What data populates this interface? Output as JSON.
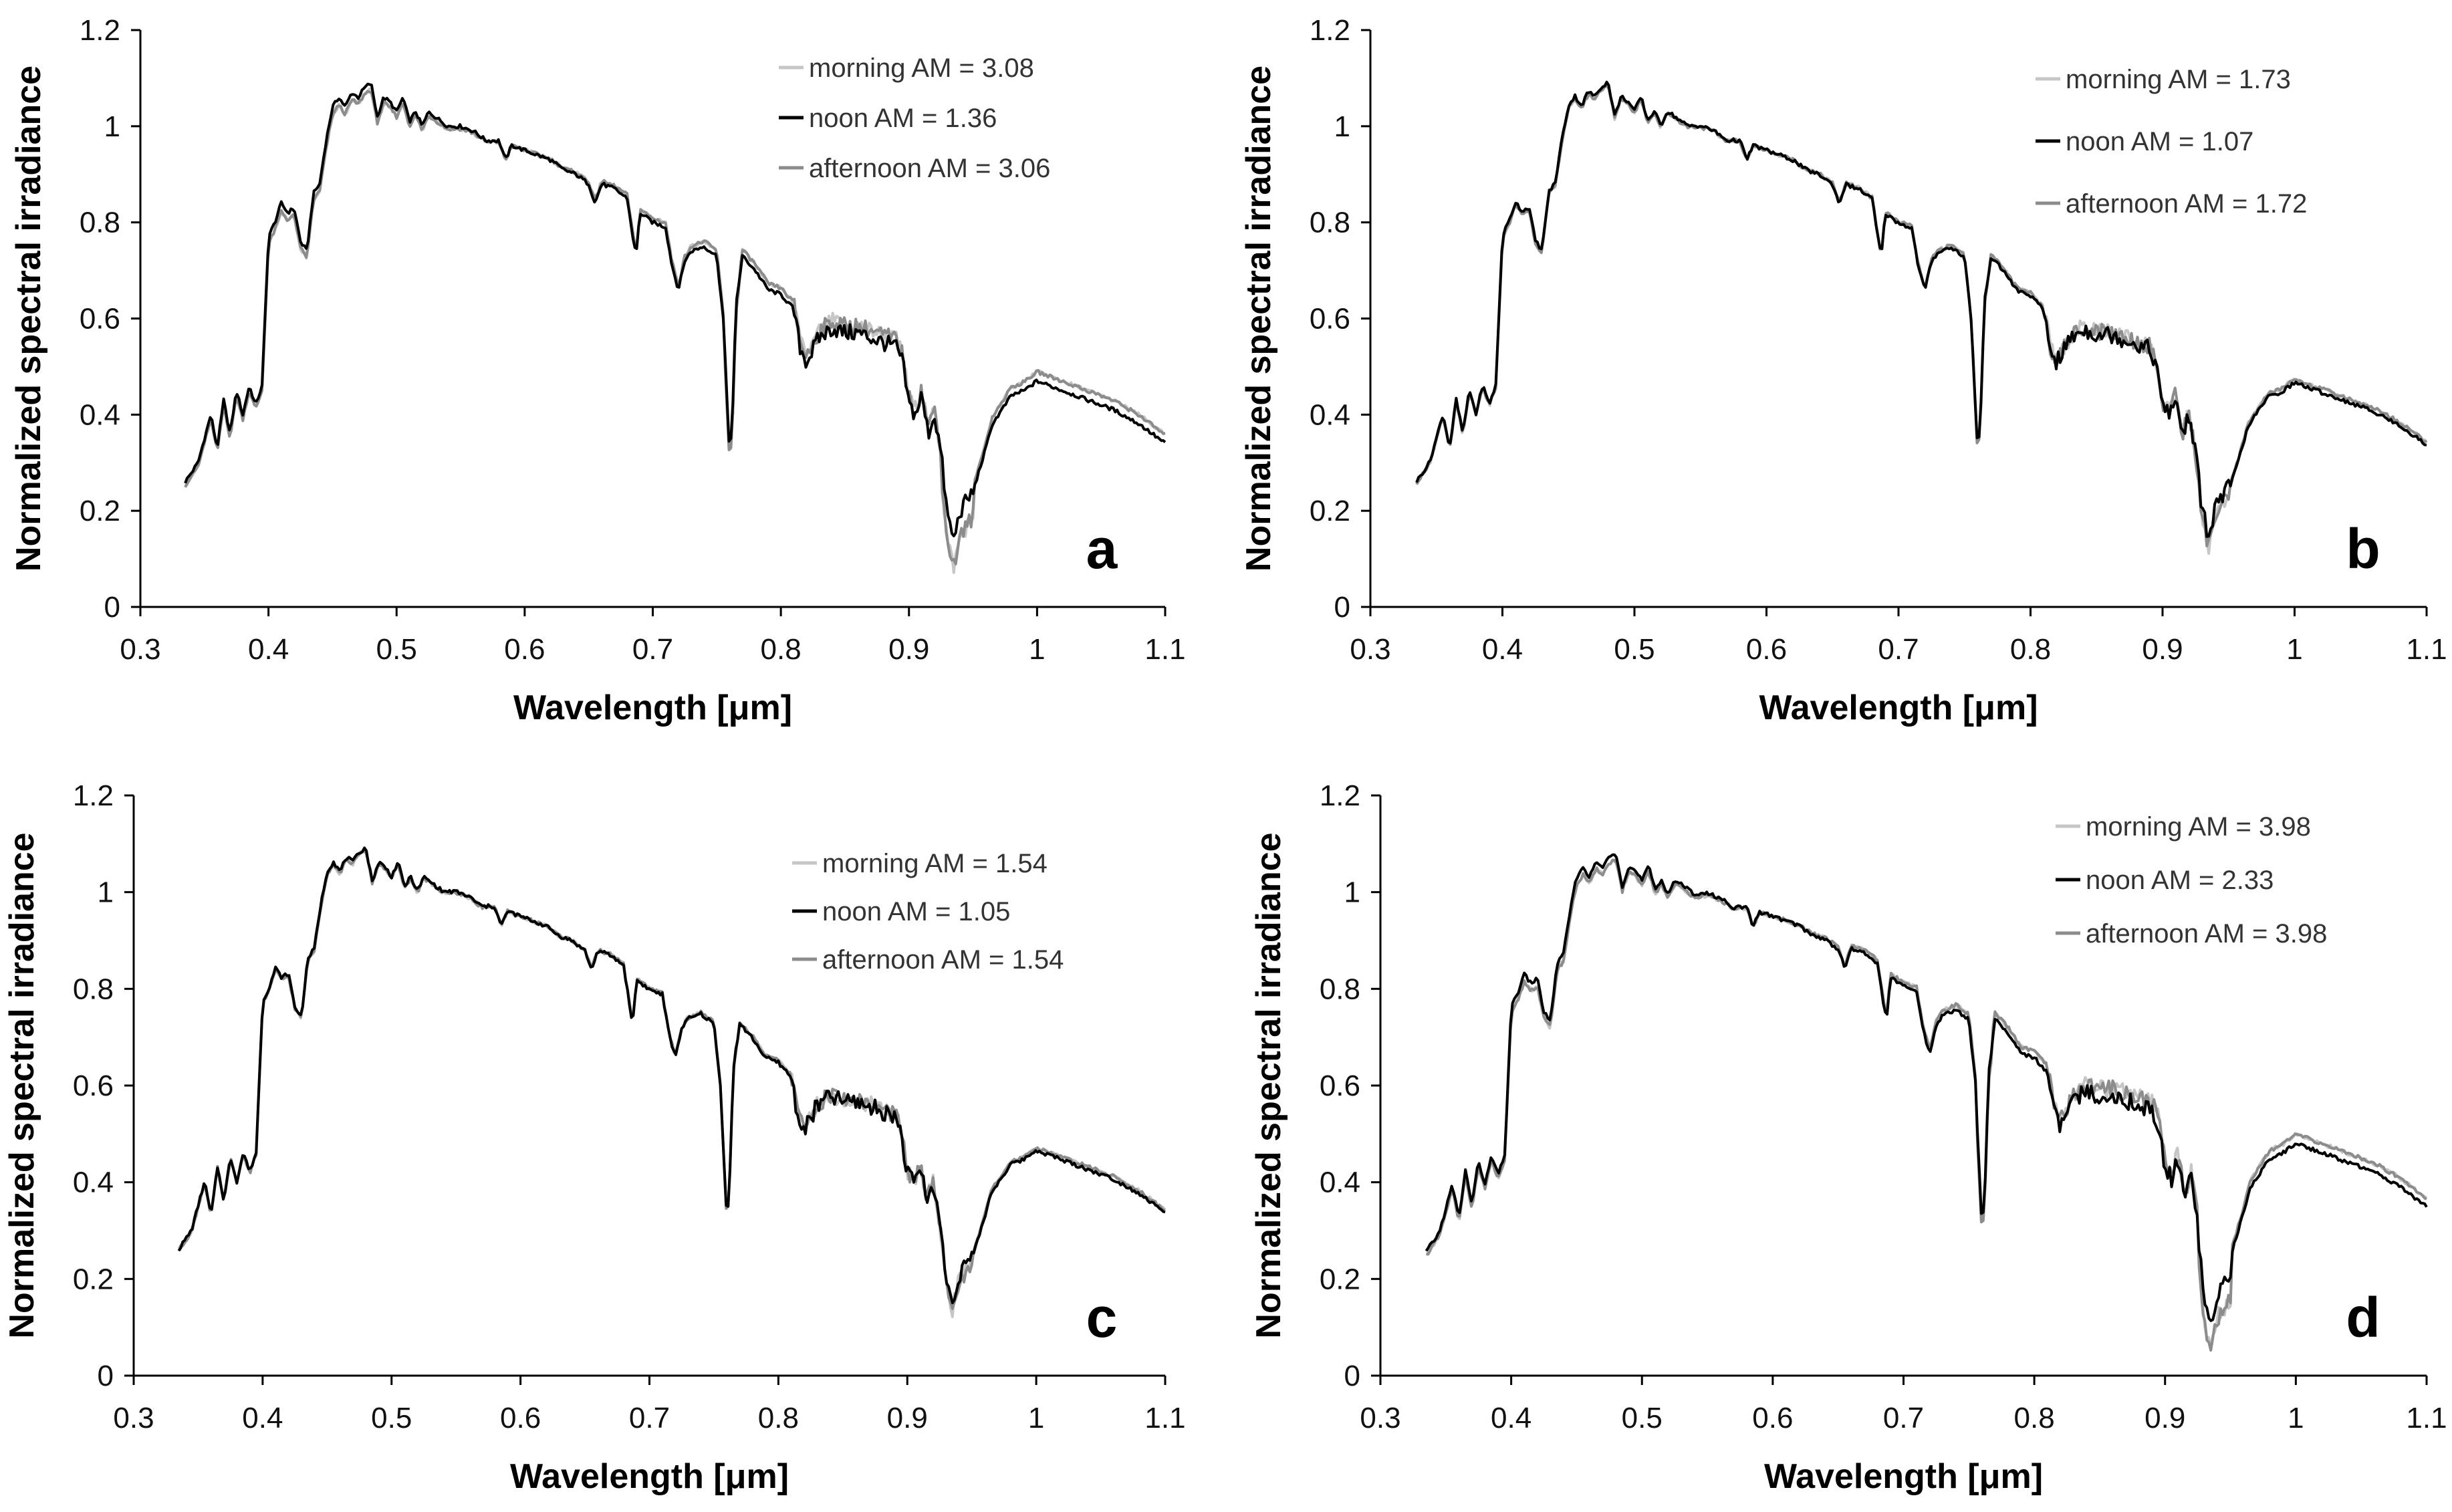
{
  "chart_data": [
    {
      "type": "line",
      "panel_label": "a",
      "xlabel_prefix": "Wavelength [",
      "xlabel_unit": "μm",
      "xlabel_suffix": "]",
      "ylabel": "Normalized spectral irradiance",
      "xlim": [
        0.3,
        1.1
      ],
      "ylim": [
        0,
        1.2
      ],
      "xticks": [
        0.3,
        0.4,
        0.5,
        0.6,
        0.7,
        0.8,
        0.9,
        1,
        1.1
      ],
      "xtick_labels": [
        "0.3",
        "0.4",
        "0.5",
        "0.6",
        "0.7",
        "0.8",
        "0.9",
        "1",
        "1.1"
      ],
      "yticks": [
        0,
        0.2,
        0.4,
        0.6,
        0.8,
        1,
        1.2
      ],
      "ytick_labels": [
        "0",
        "0.2",
        "0.4",
        "0.6",
        "0.8",
        "1",
        "1.2"
      ],
      "legend_position": "top-right",
      "series": [
        {
          "name": "morning AM = 3.08",
          "color": "#c6c6c6",
          "airmass": 3.08
        },
        {
          "name": "noon AM = 1.36",
          "color": "#000000",
          "airmass": 1.36
        },
        {
          "name": "afternoon AM = 3.06",
          "color": "#8c8c8c",
          "airmass": 3.06
        }
      ]
    },
    {
      "type": "line",
      "panel_label": "b",
      "xlabel_prefix": "Wavelength [",
      "xlabel_unit": "μm",
      "xlabel_suffix": "]",
      "ylabel": "Normalized spectral irradiance",
      "xlim": [
        0.3,
        1.1
      ],
      "ylim": [
        0,
        1.2
      ],
      "xticks": [
        0.3,
        0.4,
        0.5,
        0.6,
        0.7,
        0.8,
        0.9,
        1,
        1.1
      ],
      "xtick_labels": [
        "0.3",
        "0.4",
        "0.5",
        "0.6",
        "0.7",
        "0.8",
        "0.9",
        "1",
        "1.1"
      ],
      "yticks": [
        0,
        0.2,
        0.4,
        0.6,
        0.8,
        1,
        1.2
      ],
      "ytick_labels": [
        "0",
        "0.2",
        "0.4",
        "0.6",
        "0.8",
        "1",
        "1.2"
      ],
      "legend_position": "top-right",
      "series": [
        {
          "name": "morning AM = 1.73",
          "color": "#c6c6c6",
          "airmass": 1.73
        },
        {
          "name": "noon AM = 1.07",
          "color": "#000000",
          "airmass": 1.07
        },
        {
          "name": "afternoon AM = 1.72",
          "color": "#8c8c8c",
          "airmass": 1.72
        }
      ]
    },
    {
      "type": "line",
      "panel_label": "c",
      "xlabel_prefix": "Wavelength [",
      "xlabel_unit": "μm",
      "xlabel_suffix": "]",
      "ylabel": "Normalized spectral irradiance",
      "xlim": [
        0.3,
        1.1
      ],
      "ylim": [
        0,
        1.2
      ],
      "xticks": [
        0.3,
        0.4,
        0.5,
        0.6,
        0.7,
        0.8,
        0.9,
        1,
        1.1
      ],
      "xtick_labels": [
        "0.3",
        "0.4",
        "0.5",
        "0.6",
        "0.7",
        "0.8",
        "0.9",
        "1",
        "1.1"
      ],
      "yticks": [
        0,
        0.2,
        0.4,
        0.6,
        0.8,
        1,
        1.2
      ],
      "ytick_labels": [
        "0",
        "0.2",
        "0.4",
        "0.6",
        "0.8",
        "1",
        "1.2"
      ],
      "legend_position": "top-right",
      "series": [
        {
          "name": "morning AM = 1.54",
          "color": "#c6c6c6",
          "airmass": 1.54
        },
        {
          "name": "noon AM = 1.05",
          "color": "#000000",
          "airmass": 1.05
        },
        {
          "name": "afternoon AM = 1.54",
          "color": "#8c8c8c",
          "airmass": 1.54
        }
      ]
    },
    {
      "type": "line",
      "panel_label": "d",
      "xlabel_prefix": "Wavelength [",
      "xlabel_unit": "μm",
      "xlabel_suffix": "]",
      "ylabel": "Normalized spectral irradiance",
      "xlim": [
        0.3,
        1.1
      ],
      "ylim": [
        0,
        1.2
      ],
      "xticks": [
        0.3,
        0.4,
        0.5,
        0.6,
        0.7,
        0.8,
        0.9,
        1,
        1.1
      ],
      "xtick_labels": [
        "0.3",
        "0.4",
        "0.5",
        "0.6",
        "0.7",
        "0.8",
        "0.9",
        "1",
        "1.1"
      ],
      "yticks": [
        0,
        0.2,
        0.4,
        0.6,
        0.8,
        1,
        1.2
      ],
      "ytick_labels": [
        "0",
        "0.2",
        "0.4",
        "0.6",
        "0.8",
        "1",
        "1.2"
      ],
      "legend_position": "top-right",
      "series": [
        {
          "name": "morning AM = 3.98",
          "color": "#c6c6c6",
          "airmass": 3.98
        },
        {
          "name": "noon AM = 2.33",
          "color": "#000000",
          "airmass": 2.33
        },
        {
          "name": "afternoon AM = 3.98",
          "color": "#8c8c8c",
          "airmass": 3.98
        }
      ]
    }
  ],
  "spectrum_base": {
    "wavelength_um": [
      0.335,
      0.345,
      0.355,
      0.36,
      0.365,
      0.37,
      0.375,
      0.38,
      0.385,
      0.39,
      0.395,
      0.4,
      0.405,
      0.41,
      0.415,
      0.42,
      0.425,
      0.43,
      0.435,
      0.44,
      0.445,
      0.45,
      0.455,
      0.46,
      0.465,
      0.47,
      0.475,
      0.48,
      0.485,
      0.49,
      0.495,
      0.5,
      0.505,
      0.51,
      0.515,
      0.52,
      0.525,
      0.53,
      0.54,
      0.55,
      0.56,
      0.57,
      0.58,
      0.585,
      0.59,
      0.6,
      0.61,
      0.62,
      0.63,
      0.64,
      0.65,
      0.655,
      0.66,
      0.67,
      0.68,
      0.685,
      0.687,
      0.69,
      0.7,
      0.71,
      0.715,
      0.72,
      0.725,
      0.73,
      0.74,
      0.75,
      0.755,
      0.76,
      0.762,
      0.765,
      0.77,
      0.78,
      0.79,
      0.8,
      0.81,
      0.815,
      0.82,
      0.83,
      0.84,
      0.85,
      0.86,
      0.87,
      0.88,
      0.89,
      0.895,
      0.9,
      0.905,
      0.91,
      0.915,
      0.92,
      0.925,
      0.93,
      0.935,
      0.94,
      0.95,
      0.96,
      0.965,
      0.97,
      0.98,
      0.99,
      1.0,
      1.01,
      1.02,
      1.04,
      1.06,
      1.08,
      1.1
    ],
    "irradiance": [
      0.26,
      0.3,
      0.4,
      0.33,
      0.43,
      0.36,
      0.45,
      0.4,
      0.46,
      0.42,
      0.46,
      0.77,
      0.8,
      0.84,
      0.82,
      0.83,
      0.76,
      0.74,
      0.86,
      0.88,
      0.97,
      1.04,
      1.06,
      1.04,
      1.07,
      1.06,
      1.08,
      1.09,
      1.02,
      1.06,
      1.05,
      1.03,
      1.06,
      1.01,
      1.03,
      1.0,
      1.03,
      1.02,
      1.0,
      1.0,
      0.99,
      0.97,
      0.97,
      0.93,
      0.96,
      0.95,
      0.94,
      0.93,
      0.91,
      0.9,
      0.88,
      0.84,
      0.88,
      0.87,
      0.85,
      0.76,
      0.73,
      0.82,
      0.8,
      0.79,
      0.71,
      0.66,
      0.72,
      0.74,
      0.75,
      0.73,
      0.6,
      0.32,
      0.38,
      0.63,
      0.73,
      0.7,
      0.66,
      0.65,
      0.62,
      0.54,
      0.51,
      0.56,
      0.58,
      0.57,
      0.57,
      0.56,
      0.55,
      0.54,
      0.51,
      0.42,
      0.4,
      0.44,
      0.36,
      0.4,
      0.32,
      0.19,
      0.14,
      0.2,
      0.24,
      0.33,
      0.38,
      0.4,
      0.44,
      0.45,
      0.47,
      0.46,
      0.45,
      0.43,
      0.41,
      0.38,
      0.34
    ]
  }
}
